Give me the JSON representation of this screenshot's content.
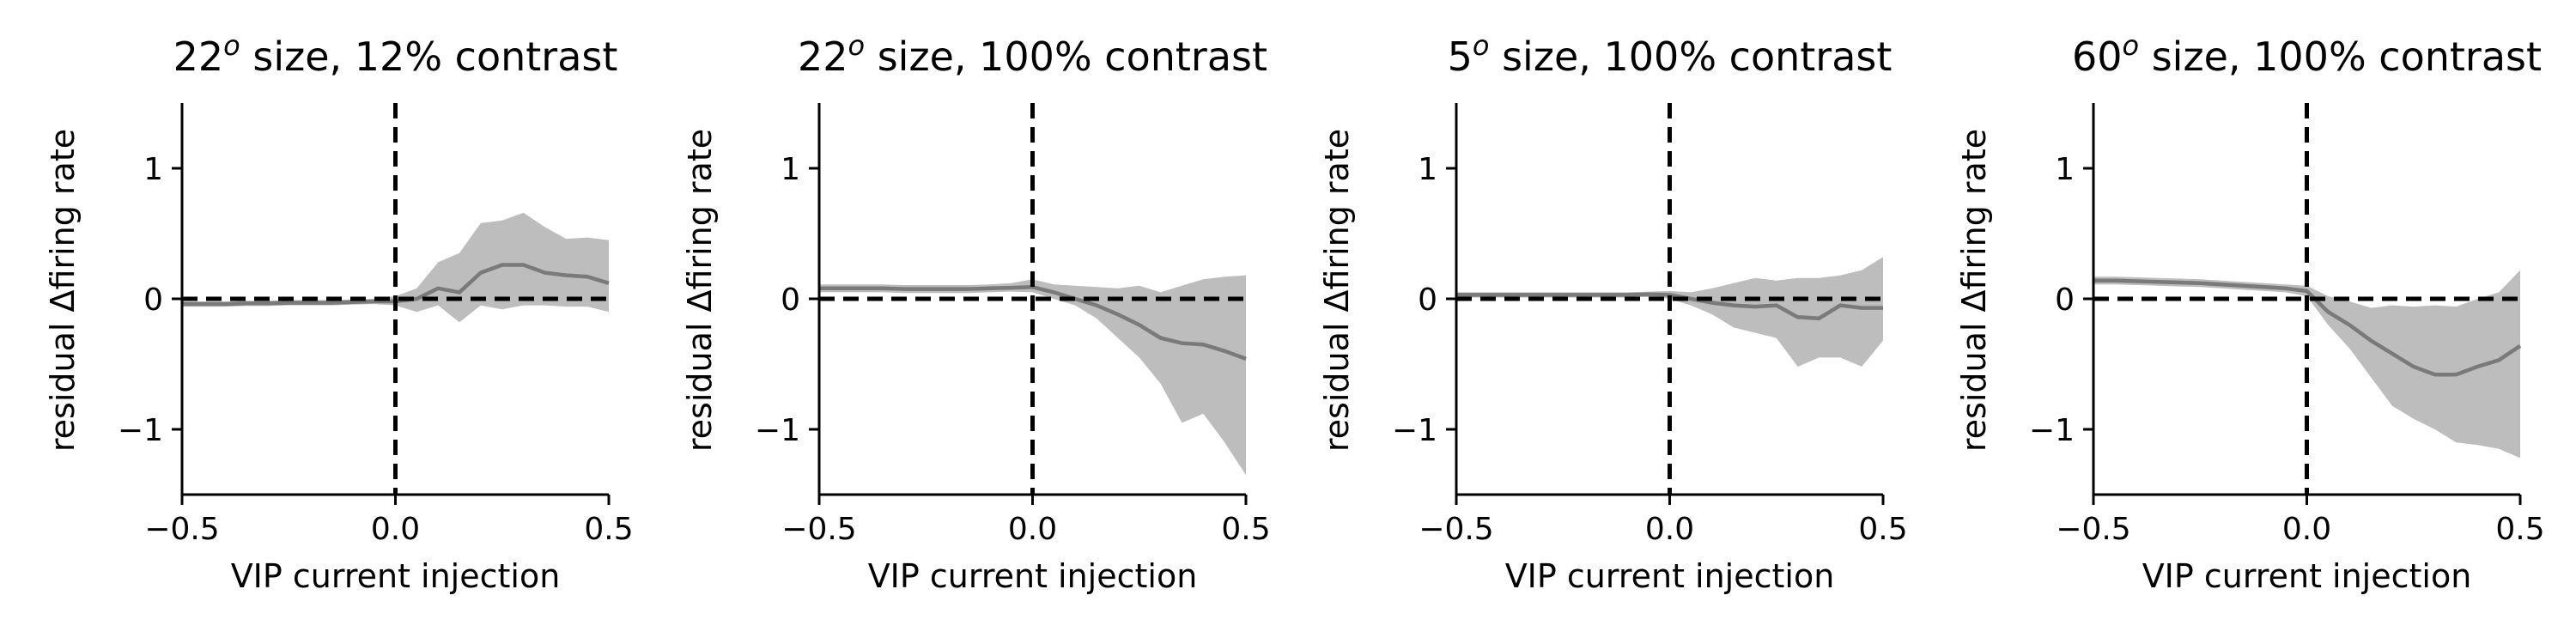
{
  "chart_data": [
    {
      "type": "area",
      "title_base": "22",
      "title_sup": "o",
      "title_rest": " size, 12% contrast",
      "xlabel": "VIP current injection",
      "ylabel": "residual Δfiring rate",
      "xlim": [
        -0.5,
        0.5
      ],
      "ylim": [
        -1.5,
        1.5
      ],
      "xticks": [
        -0.5,
        0.0,
        0.5
      ],
      "xtick_labels": [
        "−0.5",
        "0.0",
        "0.5"
      ],
      "yticks": [
        -1,
        0,
        1
      ],
      "ytick_labels": [
        "−1",
        "0",
        "1"
      ],
      "reference_lines": {
        "x": 0,
        "y": 0
      },
      "series": [
        {
          "x": [
            -0.5,
            -0.45,
            -0.4,
            -0.35,
            -0.3,
            -0.25,
            -0.2,
            -0.15,
            -0.1,
            -0.05,
            0.0,
            0.05,
            0.1,
            0.15,
            0.2,
            0.25,
            0.3,
            0.35,
            0.4,
            0.45,
            0.5
          ],
          "mean": [
            -0.04,
            -0.04,
            -0.04,
            -0.035,
            -0.035,
            -0.03,
            -0.03,
            -0.03,
            -0.025,
            -0.02,
            -0.02,
            0.0,
            0.08,
            0.05,
            0.2,
            0.26,
            0.26,
            0.2,
            0.18,
            0.17,
            0.12
          ],
          "upper": [
            -0.02,
            -0.02,
            -0.02,
            -0.015,
            -0.015,
            -0.01,
            -0.01,
            -0.01,
            -0.005,
            0.0,
            0.02,
            0.08,
            0.28,
            0.35,
            0.58,
            0.6,
            0.66,
            0.55,
            0.46,
            0.47,
            0.45
          ],
          "lower": [
            -0.06,
            -0.06,
            -0.06,
            -0.055,
            -0.055,
            -0.05,
            -0.05,
            -0.05,
            -0.045,
            -0.04,
            -0.05,
            -0.1,
            -0.05,
            -0.18,
            -0.05,
            -0.08,
            -0.05,
            -0.05,
            -0.06,
            -0.06,
            -0.1
          ]
        }
      ]
    },
    {
      "type": "area",
      "title_base": "22",
      "title_sup": "o",
      "title_rest": " size, 100% contrast",
      "xlabel": "VIP current injection",
      "ylabel": "residual Δfiring rate",
      "xlim": [
        -0.5,
        0.5
      ],
      "ylim": [
        -1.5,
        1.5
      ],
      "xticks": [
        -0.5,
        0.0,
        0.5
      ],
      "xtick_labels": [
        "−0.5",
        "0.0",
        "0.5"
      ],
      "yticks": [
        -1,
        0,
        1
      ],
      "ytick_labels": [
        "−1",
        "0",
        "1"
      ],
      "reference_lines": {
        "x": 0,
        "y": 0
      },
      "series": [
        {
          "x": [
            -0.5,
            -0.45,
            -0.4,
            -0.35,
            -0.3,
            -0.25,
            -0.2,
            -0.15,
            -0.1,
            -0.05,
            0.0,
            0.05,
            0.1,
            0.15,
            0.2,
            0.25,
            0.3,
            0.35,
            0.4,
            0.45,
            0.5
          ],
          "mean": [
            0.08,
            0.08,
            0.08,
            0.08,
            0.075,
            0.075,
            0.075,
            0.075,
            0.08,
            0.085,
            0.09,
            0.05,
            0.0,
            -0.05,
            -0.12,
            -0.2,
            -0.3,
            -0.34,
            -0.35,
            -0.4,
            -0.46
          ],
          "upper": [
            0.11,
            0.11,
            0.11,
            0.11,
            0.105,
            0.105,
            0.105,
            0.105,
            0.11,
            0.12,
            0.15,
            0.11,
            0.1,
            0.09,
            0.08,
            0.1,
            0.05,
            0.1,
            0.15,
            0.17,
            0.18
          ],
          "lower": [
            0.05,
            0.05,
            0.05,
            0.05,
            0.045,
            0.045,
            0.045,
            0.045,
            0.05,
            0.055,
            0.05,
            0.0,
            -0.05,
            -0.15,
            -0.3,
            -0.45,
            -0.65,
            -0.95,
            -0.88,
            -1.1,
            -1.35
          ]
        }
      ]
    },
    {
      "type": "area",
      "title_base": "5",
      "title_sup": "o",
      "title_rest": " size, 100% contrast",
      "xlabel": "VIP current injection",
      "ylabel": "residual Δfiring rate",
      "xlim": [
        -0.5,
        0.5
      ],
      "ylim": [
        -1.5,
        1.5
      ],
      "xticks": [
        -0.5,
        0.0,
        0.5
      ],
      "xtick_labels": [
        "−0.5",
        "0.0",
        "0.5"
      ],
      "yticks": [
        -1,
        0,
        1
      ],
      "ytick_labels": [
        "−1",
        "0",
        "1"
      ],
      "reference_lines": {
        "x": 0,
        "y": 0
      },
      "series": [
        {
          "x": [
            -0.5,
            -0.45,
            -0.4,
            -0.35,
            -0.3,
            -0.25,
            -0.2,
            -0.15,
            -0.1,
            -0.05,
            0.0,
            0.05,
            0.1,
            0.15,
            0.2,
            0.25,
            0.3,
            0.35,
            0.4,
            0.45,
            0.5
          ],
          "mean": [
            0.03,
            0.03,
            0.03,
            0.03,
            0.03,
            0.03,
            0.03,
            0.03,
            0.03,
            0.035,
            0.03,
            0.0,
            -0.03,
            -0.05,
            -0.06,
            -0.05,
            -0.14,
            -0.15,
            -0.05,
            -0.07,
            -0.07
          ],
          "upper": [
            0.05,
            0.05,
            0.05,
            0.05,
            0.05,
            0.05,
            0.05,
            0.05,
            0.05,
            0.055,
            0.06,
            0.05,
            0.08,
            0.12,
            0.16,
            0.14,
            0.16,
            0.16,
            0.18,
            0.22,
            0.32
          ],
          "lower": [
            0.01,
            0.01,
            0.01,
            0.01,
            0.01,
            0.01,
            0.01,
            0.01,
            0.01,
            0.015,
            0.0,
            -0.05,
            -0.12,
            -0.22,
            -0.26,
            -0.3,
            -0.52,
            -0.45,
            -0.45,
            -0.52,
            -0.32
          ]
        }
      ]
    },
    {
      "type": "area",
      "title_base": "60",
      "title_sup": "o",
      "title_rest": " size, 100% contrast",
      "xlabel": "VIP current injection",
      "ylabel": "residual Δfiring rate",
      "xlim": [
        -0.5,
        0.5
      ],
      "ylim": [
        -1.5,
        1.5
      ],
      "xticks": [
        -0.5,
        0.0,
        0.5
      ],
      "xtick_labels": [
        "−0.5",
        "0.0",
        "0.5"
      ],
      "yticks": [
        -1,
        0,
        1
      ],
      "ytick_labels": [
        "−1",
        "0",
        "1"
      ],
      "reference_lines": {
        "x": 0,
        "y": 0
      },
      "series": [
        {
          "x": [
            -0.5,
            -0.45,
            -0.4,
            -0.35,
            -0.3,
            -0.25,
            -0.2,
            -0.15,
            -0.1,
            -0.05,
            0.0,
            0.05,
            0.1,
            0.15,
            0.2,
            0.25,
            0.3,
            0.35,
            0.4,
            0.45,
            0.5
          ],
          "mean": [
            0.14,
            0.14,
            0.135,
            0.13,
            0.125,
            0.12,
            0.11,
            0.1,
            0.09,
            0.08,
            0.06,
            -0.1,
            -0.2,
            -0.32,
            -0.42,
            -0.52,
            -0.58,
            -0.58,
            -0.52,
            -0.47,
            -0.36
          ],
          "upper": [
            0.17,
            0.17,
            0.165,
            0.16,
            0.155,
            0.15,
            0.14,
            0.13,
            0.12,
            0.11,
            0.1,
            0.02,
            -0.02,
            -0.07,
            -0.05,
            -0.06,
            -0.05,
            -0.06,
            0.0,
            0.05,
            0.22
          ],
          "lower": [
            0.11,
            0.11,
            0.105,
            0.1,
            0.095,
            0.09,
            0.08,
            0.07,
            0.06,
            0.05,
            0.02,
            -0.2,
            -0.38,
            -0.6,
            -0.82,
            -0.92,
            -1.0,
            -1.1,
            -1.12,
            -1.15,
            -1.22
          ]
        }
      ]
    }
  ]
}
